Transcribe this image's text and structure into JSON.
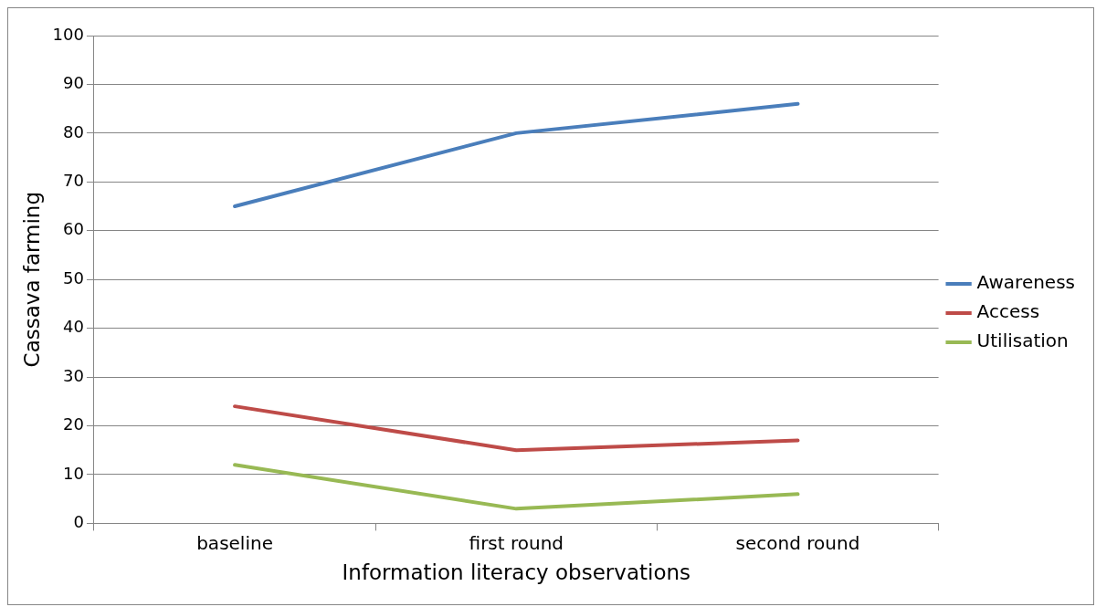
{
  "chart_data": {
    "type": "line",
    "xlabel": "Information literacy observations",
    "ylabel": "Cassava farming",
    "categories": [
      "baseline",
      "first round",
      "second round"
    ],
    "series": [
      {
        "name": "Awareness",
        "color": "#4a7ebb",
        "values": [
          65,
          80,
          86
        ]
      },
      {
        "name": "Access",
        "color": "#be4b48",
        "values": [
          24,
          15,
          17
        ]
      },
      {
        "name": "Utilisation",
        "color": "#98b954",
        "values": [
          12,
          3,
          6
        ]
      }
    ],
    "ylim": [
      0,
      100
    ],
    "yticks": [
      0,
      10,
      20,
      30,
      40,
      50,
      60,
      70,
      80,
      90,
      100
    ],
    "grid": "y",
    "legend": "right",
    "marker": "none",
    "line_style": "solid"
  }
}
